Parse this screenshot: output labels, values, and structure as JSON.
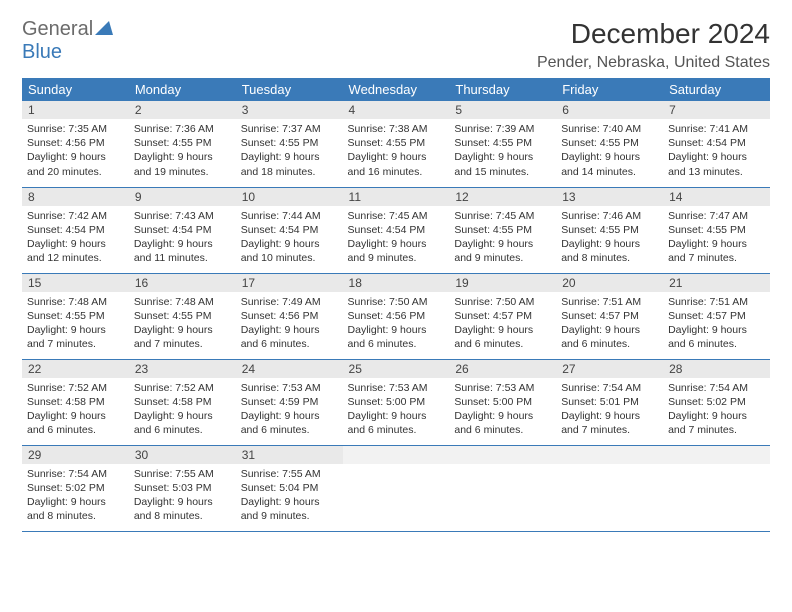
{
  "logo": {
    "part1": "General",
    "part2": "Blue"
  },
  "title": "December 2024",
  "location": "Pender, Nebraska, United States",
  "colors": {
    "header_bg": "#3a7ab8",
    "header_fg": "#ffffff",
    "daynum_bg": "#e9e9e9",
    "border": "#3a7ab8",
    "logo_gray": "#6b6b6b",
    "logo_blue": "#3a7ab8"
  },
  "weekdays": [
    "Sunday",
    "Monday",
    "Tuesday",
    "Wednesday",
    "Thursday",
    "Friday",
    "Saturday"
  ],
  "weeks": [
    [
      {
        "n": "1",
        "sr": "7:35 AM",
        "ss": "4:56 PM",
        "dl": "9 hours and 20 minutes."
      },
      {
        "n": "2",
        "sr": "7:36 AM",
        "ss": "4:55 PM",
        "dl": "9 hours and 19 minutes."
      },
      {
        "n": "3",
        "sr": "7:37 AM",
        "ss": "4:55 PM",
        "dl": "9 hours and 18 minutes."
      },
      {
        "n": "4",
        "sr": "7:38 AM",
        "ss": "4:55 PM",
        "dl": "9 hours and 16 minutes."
      },
      {
        "n": "5",
        "sr": "7:39 AM",
        "ss": "4:55 PM",
        "dl": "9 hours and 15 minutes."
      },
      {
        "n": "6",
        "sr": "7:40 AM",
        "ss": "4:55 PM",
        "dl": "9 hours and 14 minutes."
      },
      {
        "n": "7",
        "sr": "7:41 AM",
        "ss": "4:54 PM",
        "dl": "9 hours and 13 minutes."
      }
    ],
    [
      {
        "n": "8",
        "sr": "7:42 AM",
        "ss": "4:54 PM",
        "dl": "9 hours and 12 minutes."
      },
      {
        "n": "9",
        "sr": "7:43 AM",
        "ss": "4:54 PM",
        "dl": "9 hours and 11 minutes."
      },
      {
        "n": "10",
        "sr": "7:44 AM",
        "ss": "4:54 PM",
        "dl": "9 hours and 10 minutes."
      },
      {
        "n": "11",
        "sr": "7:45 AM",
        "ss": "4:54 PM",
        "dl": "9 hours and 9 minutes."
      },
      {
        "n": "12",
        "sr": "7:45 AM",
        "ss": "4:55 PM",
        "dl": "9 hours and 9 minutes."
      },
      {
        "n": "13",
        "sr": "7:46 AM",
        "ss": "4:55 PM",
        "dl": "9 hours and 8 minutes."
      },
      {
        "n": "14",
        "sr": "7:47 AM",
        "ss": "4:55 PM",
        "dl": "9 hours and 7 minutes."
      }
    ],
    [
      {
        "n": "15",
        "sr": "7:48 AM",
        "ss": "4:55 PM",
        "dl": "9 hours and 7 minutes."
      },
      {
        "n": "16",
        "sr": "7:48 AM",
        "ss": "4:55 PM",
        "dl": "9 hours and 7 minutes."
      },
      {
        "n": "17",
        "sr": "7:49 AM",
        "ss": "4:56 PM",
        "dl": "9 hours and 6 minutes."
      },
      {
        "n": "18",
        "sr": "7:50 AM",
        "ss": "4:56 PM",
        "dl": "9 hours and 6 minutes."
      },
      {
        "n": "19",
        "sr": "7:50 AM",
        "ss": "4:57 PM",
        "dl": "9 hours and 6 minutes."
      },
      {
        "n": "20",
        "sr": "7:51 AM",
        "ss": "4:57 PM",
        "dl": "9 hours and 6 minutes."
      },
      {
        "n": "21",
        "sr": "7:51 AM",
        "ss": "4:57 PM",
        "dl": "9 hours and 6 minutes."
      }
    ],
    [
      {
        "n": "22",
        "sr": "7:52 AM",
        "ss": "4:58 PM",
        "dl": "9 hours and 6 minutes."
      },
      {
        "n": "23",
        "sr": "7:52 AM",
        "ss": "4:58 PM",
        "dl": "9 hours and 6 minutes."
      },
      {
        "n": "24",
        "sr": "7:53 AM",
        "ss": "4:59 PM",
        "dl": "9 hours and 6 minutes."
      },
      {
        "n": "25",
        "sr": "7:53 AM",
        "ss": "5:00 PM",
        "dl": "9 hours and 6 minutes."
      },
      {
        "n": "26",
        "sr": "7:53 AM",
        "ss": "5:00 PM",
        "dl": "9 hours and 6 minutes."
      },
      {
        "n": "27",
        "sr": "7:54 AM",
        "ss": "5:01 PM",
        "dl": "9 hours and 7 minutes."
      },
      {
        "n": "28",
        "sr": "7:54 AM",
        "ss": "5:02 PM",
        "dl": "9 hours and 7 minutes."
      }
    ],
    [
      {
        "n": "29",
        "sr": "7:54 AM",
        "ss": "5:02 PM",
        "dl": "9 hours and 8 minutes."
      },
      {
        "n": "30",
        "sr": "7:55 AM",
        "ss": "5:03 PM",
        "dl": "9 hours and 8 minutes."
      },
      {
        "n": "31",
        "sr": "7:55 AM",
        "ss": "5:04 PM",
        "dl": "9 hours and 9 minutes."
      },
      null,
      null,
      null,
      null
    ]
  ],
  "labels": {
    "sunrise": "Sunrise:",
    "sunset": "Sunset:",
    "daylight": "Daylight:"
  }
}
